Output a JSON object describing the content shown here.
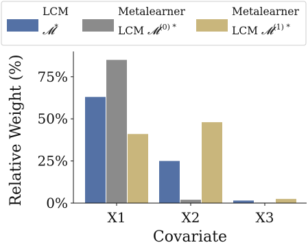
{
  "chart_data": {
    "type": "bar",
    "title": "",
    "xlabel": "Covariate",
    "ylabel": "Relative Weight (%)",
    "categories": [
      "X1",
      "X2",
      "X3"
    ],
    "ylim": [
      0,
      90
    ],
    "yticks": [
      0,
      25,
      50,
      75
    ],
    "ytick_labels": [
      "0%",
      "25%",
      "50%",
      "75%"
    ],
    "grid": false,
    "legend_position": "top",
    "series": [
      {
        "name": "LCM M*",
        "legend_line1": "LCM",
        "legend_line2_prefix": "",
        "legend_line2_math": "𝓜",
        "legend_line2_sup": "*",
        "color": "#5471a5",
        "values": [
          63,
          25,
          1.5
        ]
      },
      {
        "name": "Metalearner LCM M(0)*",
        "legend_line1": "Metalearner",
        "legend_line2_prefix": "LCM ",
        "legend_line2_math": "𝓜",
        "legend_line2_sup": "(0) *",
        "color": "#8b8b8b",
        "values": [
          85,
          2,
          0.3
        ]
      },
      {
        "name": "Metalearner LCM M(1)*",
        "legend_line1": "Metalearner",
        "legend_line2_prefix": "LCM ",
        "legend_line2_math": "𝓜",
        "legend_line2_sup": "(1) *",
        "color": "#c9b67c",
        "values": [
          41,
          48,
          2.5
        ]
      }
    ]
  }
}
